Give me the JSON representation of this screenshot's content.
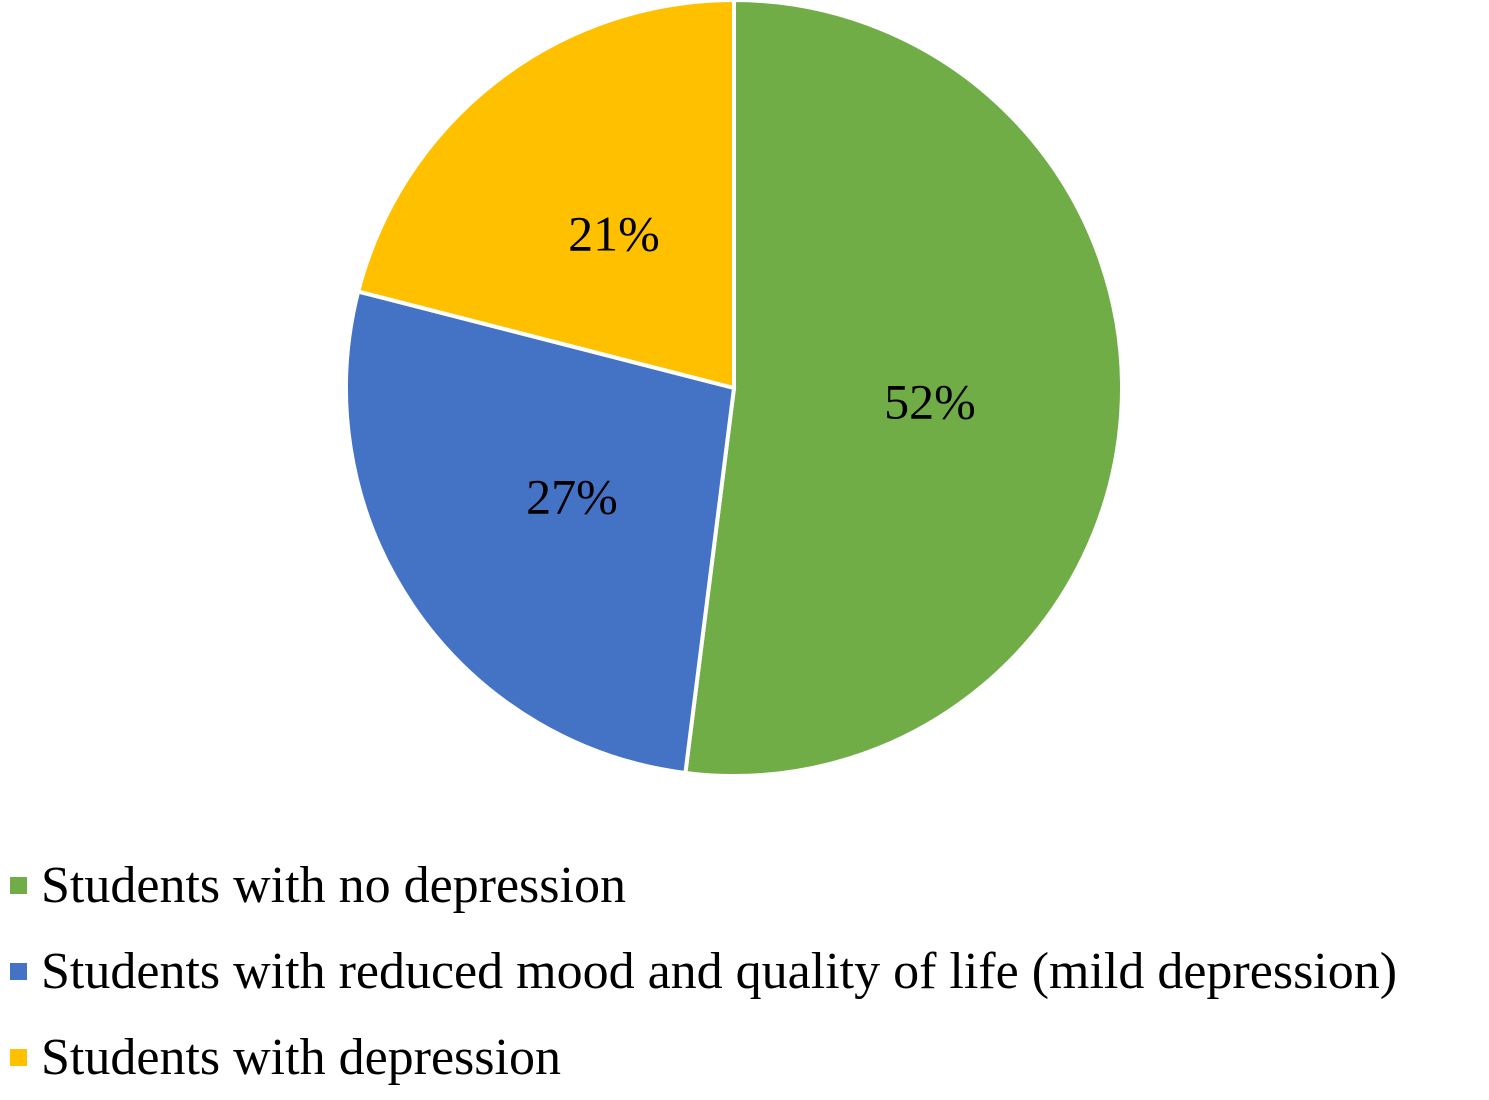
{
  "chart_data": {
    "type": "pie",
    "title": "",
    "slices": [
      {
        "label": "Students with no depression",
        "value": 52,
        "display": "52%",
        "color": "#70AD47"
      },
      {
        "label": "Students with reduced mood and quality of life (mild depression)",
        "value": 27,
        "display": "27%",
        "color": "#4472C4"
      },
      {
        "label": "Students with depression",
        "value": 21,
        "display": "21%",
        "color": "#FFC000"
      }
    ],
    "start_angle_deg": 0,
    "direction": "clockwise",
    "legend_position": "bottom-left"
  }
}
